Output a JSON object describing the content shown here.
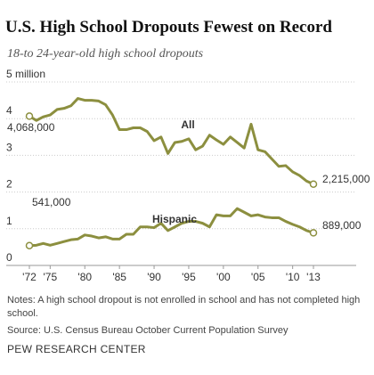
{
  "chart_data": {
    "type": "line",
    "title": "U.S. High School Dropouts Fewest on Record",
    "subtitle": "18-to 24-year-old high school dropouts",
    "x": [
      1972,
      1973,
      1974,
      1975,
      1976,
      1977,
      1978,
      1979,
      1980,
      1981,
      1982,
      1983,
      1984,
      1985,
      1986,
      1987,
      1988,
      1989,
      1990,
      1991,
      1992,
      1993,
      1994,
      1995,
      1996,
      1997,
      1998,
      1999,
      2000,
      2001,
      2002,
      2003,
      2004,
      2005,
      2006,
      2007,
      2008,
      2009,
      2010,
      2011,
      2012,
      2013
    ],
    "series": [
      {
        "name": "All",
        "color": "#8c8f3f",
        "values": [
          4.068,
          3.95,
          4.05,
          4.1,
          4.25,
          4.28,
          4.35,
          4.55,
          4.5,
          4.5,
          4.48,
          4.38,
          4.1,
          3.7,
          3.7,
          3.75,
          3.75,
          3.65,
          3.4,
          3.5,
          3.05,
          3.35,
          3.38,
          3.45,
          3.15,
          3.25,
          3.55,
          3.42,
          3.3,
          3.5,
          3.35,
          3.2,
          3.85,
          3.15,
          3.1,
          2.9,
          2.7,
          2.72,
          2.55,
          2.45,
          2.3,
          2.215
        ],
        "value_labels": [
          "4,068,000",
          null,
          null,
          null,
          null,
          null,
          null,
          null,
          null,
          null,
          null,
          null,
          null,
          null,
          null,
          null,
          null,
          null,
          null,
          null,
          null,
          null,
          null,
          null,
          null,
          null,
          null,
          null,
          null,
          null,
          null,
          null,
          null,
          null,
          null,
          null,
          null,
          null,
          null,
          null,
          null,
          "2,215,000"
        ]
      },
      {
        "name": "Hispanic",
        "color": "#8c8f3f",
        "values": [
          0.541,
          0.55,
          0.6,
          0.55,
          0.6,
          0.65,
          0.7,
          0.72,
          0.83,
          0.8,
          0.75,
          0.78,
          0.72,
          0.72,
          0.85,
          0.85,
          1.05,
          1.05,
          1.03,
          1.15,
          0.95,
          1.05,
          1.15,
          1.2,
          1.2,
          1.15,
          1.05,
          1.38,
          1.35,
          1.35,
          1.55,
          1.45,
          1.35,
          1.38,
          1.32,
          1.3,
          1.3,
          1.2,
          1.12,
          1.05,
          0.95,
          0.889
        ],
        "value_labels": [
          "541,000",
          null,
          null,
          null,
          null,
          null,
          null,
          null,
          null,
          null,
          null,
          null,
          null,
          null,
          null,
          null,
          null,
          null,
          null,
          null,
          null,
          null,
          null,
          null,
          null,
          null,
          null,
          null,
          null,
          null,
          null,
          null,
          null,
          null,
          null,
          null,
          null,
          null,
          null,
          null,
          null,
          "889,000"
        ]
      }
    ],
    "xlim": [
      1972,
      2013
    ],
    "xticks": [
      {
        "value": 1972,
        "label": "'72"
      },
      {
        "value": 1975,
        "label": "'75"
      },
      {
        "value": 1980,
        "label": "'80"
      },
      {
        "value": 1985,
        "label": "'85"
      },
      {
        "value": 1990,
        "label": "'90"
      },
      {
        "value": 1995,
        "label": "'95"
      },
      {
        "value": 2000,
        "label": "'00"
      },
      {
        "value": 2005,
        "label": "'05"
      },
      {
        "value": 2010,
        "label": "'10"
      },
      {
        "value": 2013,
        "label": "'13"
      }
    ],
    "ylim": [
      0,
      5
    ],
    "yticks": [
      0,
      1,
      2,
      3,
      4,
      {
        "value": 5,
        "label": "5 million"
      }
    ],
    "grid": true,
    "notes": "Notes: A high school dropout is not enrolled in school and has not completed high school.",
    "source": "Source: U.S. Census Bureau October Current Population Survey",
    "credit": "PEW RESEARCH CENTER"
  }
}
